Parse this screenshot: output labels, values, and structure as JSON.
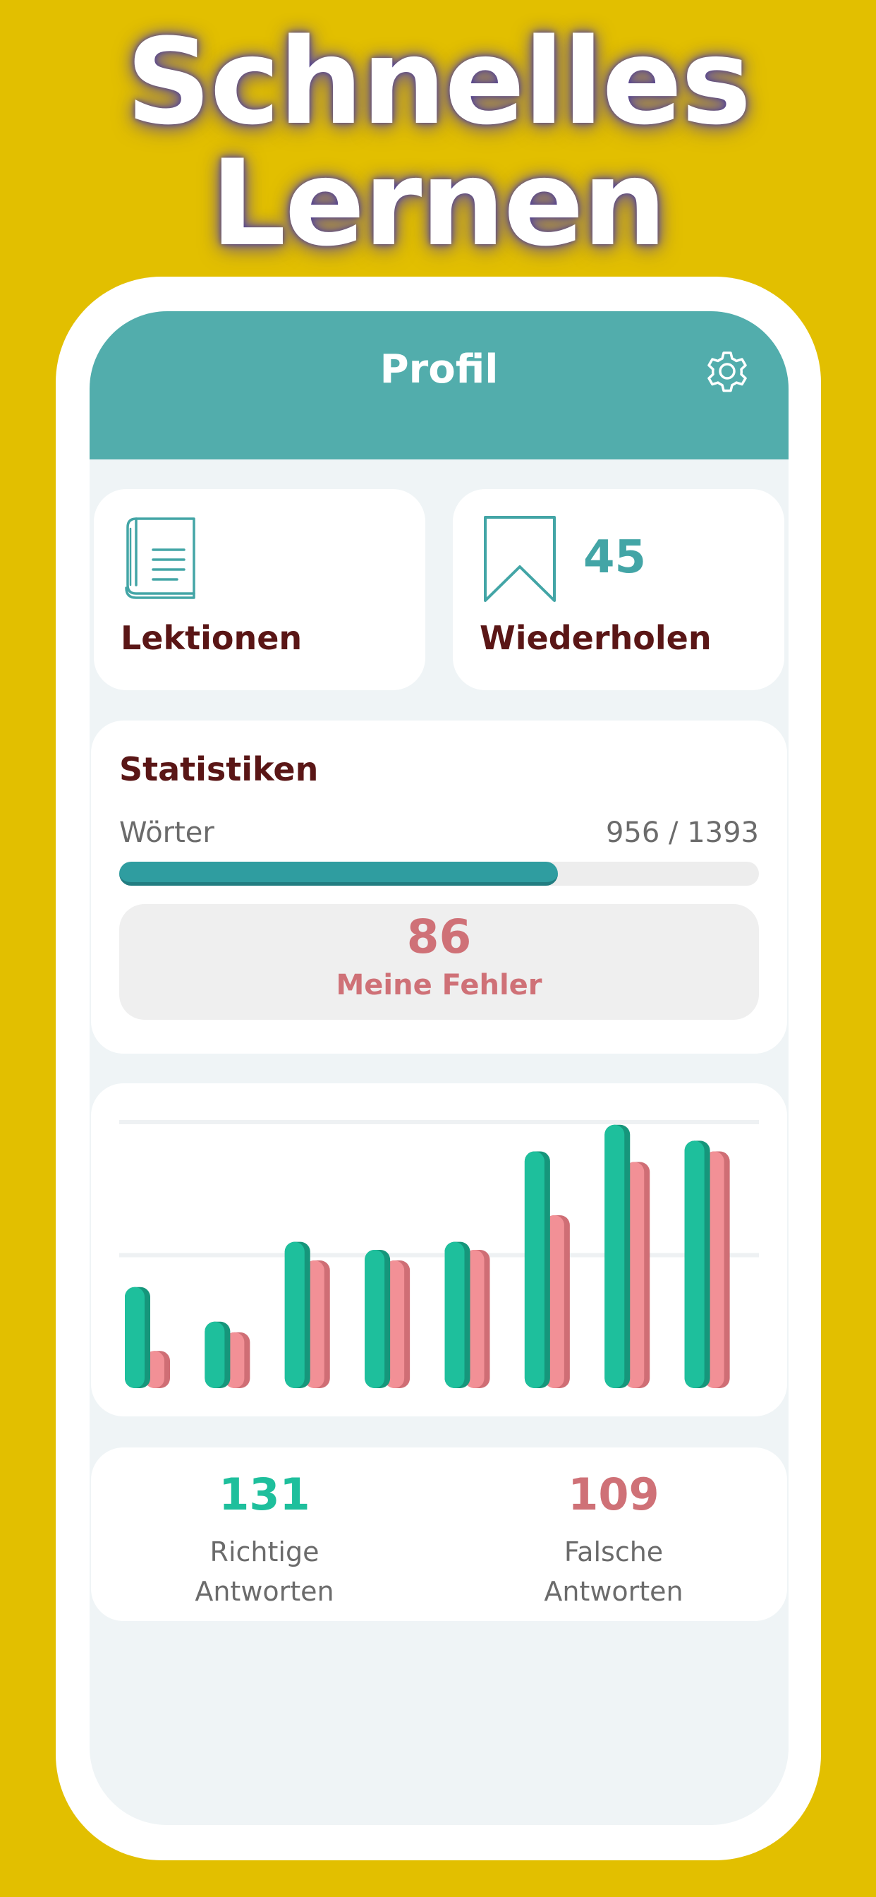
{
  "promo": {
    "headline_line1": "Schnelles",
    "headline_line2": "Lernen"
  },
  "header": {
    "title": "Profil",
    "settings_icon": "gear-icon"
  },
  "tiles": {
    "lessons": {
      "icon": "book-icon",
      "label": "Lektionen"
    },
    "review": {
      "icon": "bookmark-icon",
      "count": "45",
      "label": "Wiederholen"
    }
  },
  "statistics": {
    "title": "Statistiken",
    "words_label": "Wörter",
    "words_learned": 956,
    "words_total": 1393,
    "words_count_text": "956 / 1393",
    "mistakes_count": "86",
    "mistakes_label": "Meine Fehler"
  },
  "chart_data": {
    "type": "bar",
    "series": [
      {
        "values": [
          38,
          25,
          55,
          52,
          55,
          89,
          99,
          93
        ]
      },
      {
        "values": [
          14,
          21,
          48,
          48,
          52,
          65,
          85,
          89
        ]
      }
    ],
    "ylim": [
      0,
      100
    ],
    "grid": true
  },
  "results": {
    "correct_count": "131",
    "correct_label_line1": "Richtige",
    "correct_label_line2": "Antworten",
    "wrong_count": "109",
    "wrong_label_line1": "Falsche",
    "wrong_label_line2": "Antworten"
  },
  "colors": {
    "background": "#e2bf00",
    "header": "#52adac",
    "accent_teal": "#43a5a6",
    "correct": "#1ebf9c",
    "wrong": "#f29096",
    "mistakes": "#cf7177",
    "label_dark": "#5a1616"
  }
}
